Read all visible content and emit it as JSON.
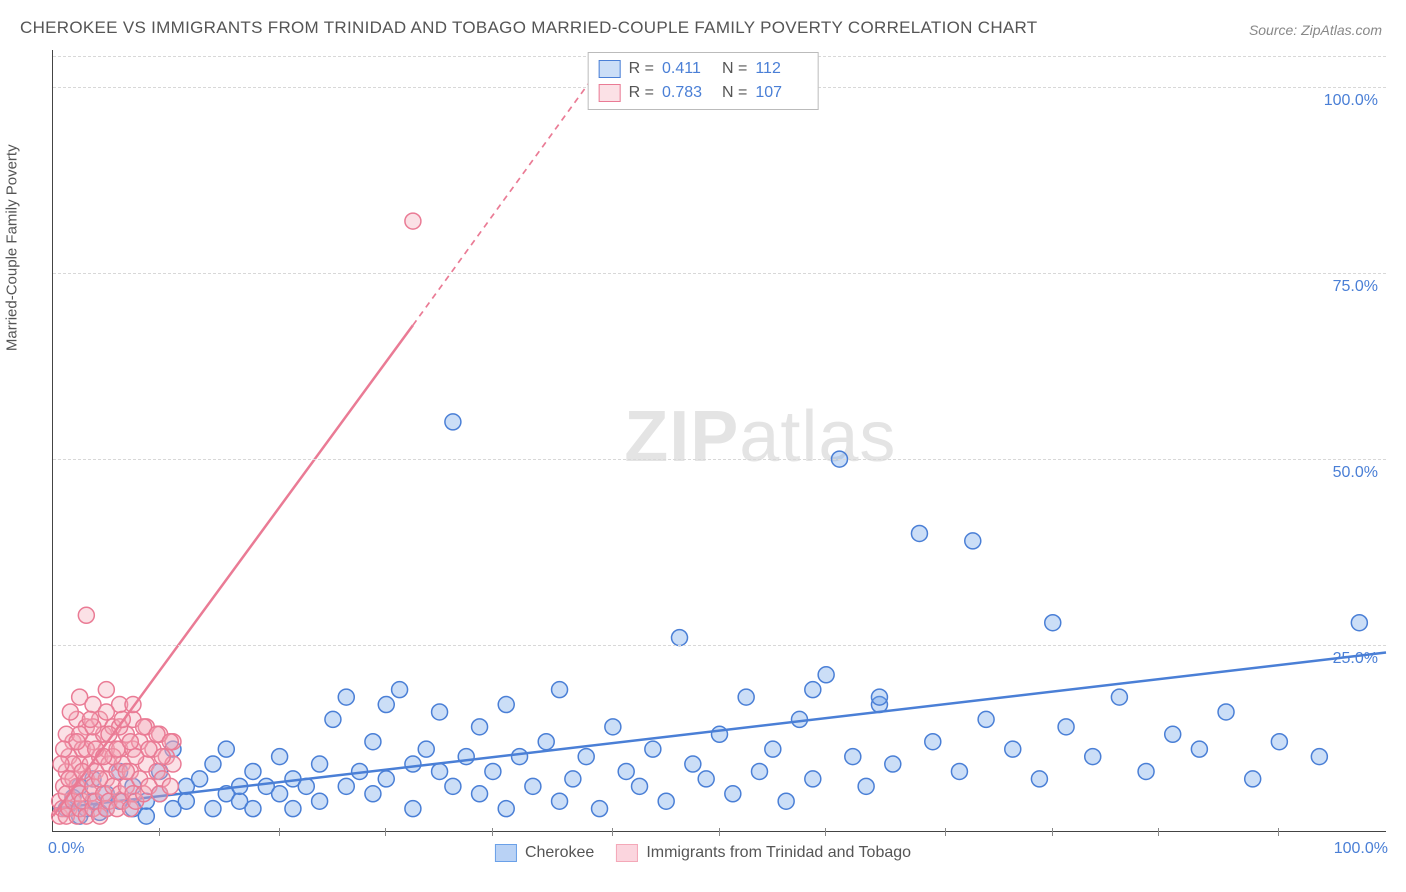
{
  "title": "CHEROKEE VS IMMIGRANTS FROM TRINIDAD AND TOBAGO MARRIED-COUPLE FAMILY POVERTY CORRELATION CHART",
  "source": "Source: ZipAtlas.com",
  "y_axis_label": "Married-Couple Family Poverty",
  "watermark_a": "ZIP",
  "watermark_b": "atlas",
  "chart": {
    "type": "scatter",
    "background_color": "#ffffff",
    "grid_color": "#d8d8d8",
    "axis_color": "#444444",
    "tick_label_color": "#4a7fd6",
    "xlim": [
      0,
      100
    ],
    "ylim": [
      0,
      105
    ],
    "x_ticks": [
      0,
      100
    ],
    "x_tick_labels": [
      "0.0%",
      "100.0%"
    ],
    "minor_x_ticks": [
      8,
      17,
      25,
      33,
      42,
      50,
      58,
      67,
      75,
      83,
      92
    ],
    "y_ticks": [
      25,
      50,
      75,
      100
    ],
    "y_tick_labels": [
      "25.0%",
      "50.0%",
      "75.0%",
      "100.0%"
    ],
    "marker_radius": 8,
    "marker_fill_opacity": 0.35,
    "marker_stroke_width": 1.5,
    "line_width": 2.5,
    "series": [
      {
        "name": "Cherokee",
        "color": "#6aa0e8",
        "stroke": "#4a7fd6",
        "r_value": "0.411",
        "n_value": "112",
        "trend": {
          "x1": 0,
          "y1": 3,
          "x2": 100,
          "y2": 24,
          "dash_after_x": 100
        },
        "points": [
          [
            1,
            3
          ],
          [
            1.5,
            4.5
          ],
          [
            2,
            2
          ],
          [
            2,
            6
          ],
          [
            2.5,
            3
          ],
          [
            3,
            4
          ],
          [
            3,
            7
          ],
          [
            3.5,
            2.5
          ],
          [
            4,
            5
          ],
          [
            4,
            3
          ],
          [
            5,
            4
          ],
          [
            5,
            8
          ],
          [
            6,
            3
          ],
          [
            6,
            6
          ],
          [
            7,
            4
          ],
          [
            7,
            2
          ],
          [
            8,
            5
          ],
          [
            8,
            8
          ],
          [
            9,
            3
          ],
          [
            9,
            11
          ],
          [
            10,
            6
          ],
          [
            10,
            4
          ],
          [
            11,
            7
          ],
          [
            12,
            3
          ],
          [
            12,
            9
          ],
          [
            13,
            5
          ],
          [
            13,
            11
          ],
          [
            14,
            4
          ],
          [
            14,
            6
          ],
          [
            15,
            8
          ],
          [
            15,
            3
          ],
          [
            16,
            6
          ],
          [
            17,
            5
          ],
          [
            17,
            10
          ],
          [
            18,
            7
          ],
          [
            18,
            3
          ],
          [
            19,
            6
          ],
          [
            20,
            9
          ],
          [
            20,
            4
          ],
          [
            21,
            15
          ],
          [
            22,
            6
          ],
          [
            22,
            18
          ],
          [
            23,
            8
          ],
          [
            24,
            5
          ],
          [
            24,
            12
          ],
          [
            25,
            7
          ],
          [
            25,
            17
          ],
          [
            26,
            19
          ],
          [
            27,
            9
          ],
          [
            27,
            3
          ],
          [
            28,
            11
          ],
          [
            29,
            8
          ],
          [
            29,
            16
          ],
          [
            30,
            6
          ],
          [
            30,
            55
          ],
          [
            31,
            10
          ],
          [
            32,
            5
          ],
          [
            32,
            14
          ],
          [
            33,
            8
          ],
          [
            34,
            3
          ],
          [
            34,
            17
          ],
          [
            35,
            10
          ],
          [
            36,
            6
          ],
          [
            37,
            12
          ],
          [
            38,
            4
          ],
          [
            38,
            19
          ],
          [
            39,
            7
          ],
          [
            40,
            10
          ],
          [
            41,
            3
          ],
          [
            42,
            14
          ],
          [
            43,
            8
          ],
          [
            44,
            6
          ],
          [
            45,
            11
          ],
          [
            46,
            4
          ],
          [
            47,
            26
          ],
          [
            48,
            9
          ],
          [
            49,
            7
          ],
          [
            50,
            13
          ],
          [
            51,
            5
          ],
          [
            52,
            18
          ],
          [
            53,
            8
          ],
          [
            54,
            11
          ],
          [
            55,
            4
          ],
          [
            56,
            15
          ],
          [
            57,
            7
          ],
          [
            58,
            21
          ],
          [
            59,
            50
          ],
          [
            60,
            10
          ],
          [
            61,
            6
          ],
          [
            62,
            17
          ],
          [
            63,
            9
          ],
          [
            65,
            40
          ],
          [
            66,
            12
          ],
          [
            68,
            8
          ],
          [
            69,
            39
          ],
          [
            70,
            15
          ],
          [
            72,
            11
          ],
          [
            74,
            7
          ],
          [
            75,
            28
          ],
          [
            76,
            14
          ],
          [
            78,
            10
          ],
          [
            80,
            18
          ],
          [
            82,
            8
          ],
          [
            84,
            13
          ],
          [
            86,
            11
          ],
          [
            88,
            16
          ],
          [
            90,
            7
          ],
          [
            92,
            12
          ],
          [
            95,
            10
          ],
          [
            98,
            28
          ],
          [
            57,
            19
          ],
          [
            62,
            18
          ]
        ]
      },
      {
        "name": "Immigrants from Trinidad and Tobago",
        "color": "#f4a8b8",
        "stroke": "#ea7b95",
        "r_value": "0.783",
        "n_value": "107",
        "trend": {
          "x1": 0,
          "y1": 2,
          "x2": 27,
          "y2": 68,
          "dash_after_x": 27,
          "x3": 42,
          "y3": 105
        },
        "points": [
          [
            0.5,
            2
          ],
          [
            0.5,
            4
          ],
          [
            0.7,
            3
          ],
          [
            0.8,
            6
          ],
          [
            1,
            2
          ],
          [
            1,
            5
          ],
          [
            1,
            8
          ],
          [
            1.2,
            3
          ],
          [
            1.2,
            10
          ],
          [
            1.5,
            4
          ],
          [
            1.5,
            7
          ],
          [
            1.5,
            12
          ],
          [
            1.8,
            2
          ],
          [
            1.8,
            6
          ],
          [
            1.8,
            15
          ],
          [
            2,
            3
          ],
          [
            2,
            5
          ],
          [
            2,
            9
          ],
          [
            2,
            18
          ],
          [
            2.2,
            4
          ],
          [
            2.2,
            11
          ],
          [
            2.5,
            2
          ],
          [
            2.5,
            7
          ],
          [
            2.5,
            14
          ],
          [
            2.5,
            29
          ],
          [
            2.8,
            5
          ],
          [
            2.8,
            9
          ],
          [
            3,
            3
          ],
          [
            3,
            6
          ],
          [
            3,
            12
          ],
          [
            3,
            17
          ],
          [
            3.2,
            4
          ],
          [
            3.2,
            8
          ],
          [
            3.5,
            2
          ],
          [
            3.5,
            10
          ],
          [
            3.5,
            15
          ],
          [
            3.8,
            5
          ],
          [
            3.8,
            13
          ],
          [
            4,
            3
          ],
          [
            4,
            7
          ],
          [
            4,
            11
          ],
          [
            4,
            19
          ],
          [
            4.2,
            4
          ],
          [
            4.2,
            9
          ],
          [
            4.5,
            6
          ],
          [
            4.5,
            14
          ],
          [
            4.8,
            3
          ],
          [
            4.8,
            8
          ],
          [
            5,
            5
          ],
          [
            5,
            11
          ],
          [
            5,
            17
          ],
          [
            5.2,
            4
          ],
          [
            5.2,
            9
          ],
          [
            5.5,
            6
          ],
          [
            5.5,
            13
          ],
          [
            5.8,
            3
          ],
          [
            5.8,
            8
          ],
          [
            6,
            5
          ],
          [
            6,
            11
          ],
          [
            6,
            15
          ],
          [
            6.2,
            4
          ],
          [
            6.5,
            7
          ],
          [
            6.5,
            12
          ],
          [
            6.8,
            5
          ],
          [
            7,
            9
          ],
          [
            7,
            14
          ],
          [
            7.2,
            6
          ],
          [
            7.5,
            11
          ],
          [
            7.8,
            8
          ],
          [
            8,
            5
          ],
          [
            8,
            13
          ],
          [
            8.2,
            7
          ],
          [
            8.5,
            10
          ],
          [
            8.8,
            6
          ],
          [
            9,
            12
          ],
          [
            9,
            9
          ],
          [
            1,
            13
          ],
          [
            1.5,
            9
          ],
          [
            2,
            13
          ],
          [
            2.5,
            11
          ],
          [
            3,
            14
          ],
          [
            3.5,
            7
          ],
          [
            4,
            16
          ],
          [
            4.5,
            10
          ],
          [
            5,
            14
          ],
          [
            5.5,
            8
          ],
          [
            6,
            17
          ],
          [
            0.8,
            11
          ],
          [
            1.2,
            7
          ],
          [
            1.8,
            12
          ],
          [
            2.2,
            8
          ],
          [
            2.8,
            15
          ],
          [
            3.2,
            11
          ],
          [
            3.8,
            10
          ],
          [
            4.2,
            13
          ],
          [
            4.8,
            11
          ],
          [
            5.2,
            15
          ],
          [
            5.8,
            12
          ],
          [
            6.2,
            10
          ],
          [
            6.8,
            14
          ],
          [
            7.2,
            11
          ],
          [
            7.8,
            13
          ],
          [
            8.2,
            10
          ],
          [
            8.8,
            12
          ],
          [
            0.6,
            9
          ],
          [
            1.3,
            16
          ],
          [
            27,
            82
          ]
        ]
      }
    ]
  },
  "legend_bottom": [
    {
      "label": "Cherokee",
      "fill": "#b9d2f5",
      "stroke": "#6aa0e8"
    },
    {
      "label": "Immigrants from Trinidad and Tobago",
      "fill": "#fbd5de",
      "stroke": "#f4a8b8"
    }
  ],
  "legend_top_labels": {
    "r": "R  =",
    "n": "N  ="
  }
}
